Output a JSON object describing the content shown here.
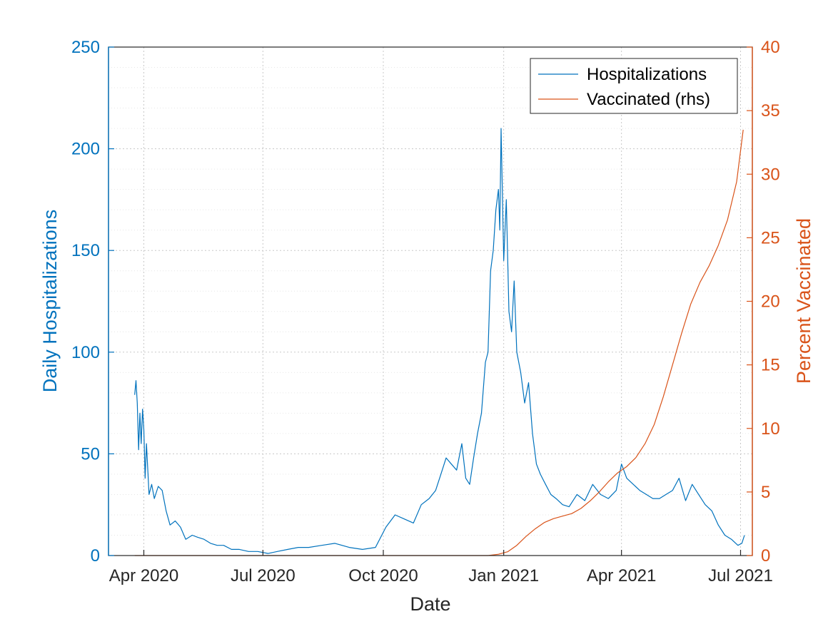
{
  "colors": {
    "hosp": "#0072BD",
    "vacc": "#D95319",
    "axis": "#262626",
    "background": "#ffffff"
  },
  "legend": {
    "placement": "top-right",
    "hosp": "Hospitalizations",
    "vacc": "Vaccinated (rhs)"
  },
  "chart_data": {
    "type": "line",
    "xlabel": "Date",
    "ylabel_left": "Daily Hospitalizations",
    "ylabel_right": "Percent Vaccinated",
    "xlim": [
      "2020-03-05",
      "2021-07-10"
    ],
    "ylim_left": [
      0,
      250
    ],
    "ylim_right": [
      0,
      40
    ],
    "grid": true,
    "minor_grid": true,
    "x_ticks": [
      {
        "date": "2020-04-01",
        "label": "Apr 2020"
      },
      {
        "date": "2020-07-01",
        "label": "Jul 2020"
      },
      {
        "date": "2020-10-01",
        "label": "Oct 2020"
      },
      {
        "date": "2021-01-01",
        "label": "Jan 2021"
      },
      {
        "date": "2021-04-01",
        "label": "Apr 2021"
      },
      {
        "date": "2021-07-01",
        "label": "Jul 2021"
      }
    ],
    "y_ticks_left": [
      0,
      50,
      100,
      150,
      200,
      250
    ],
    "y_ticks_right": [
      0,
      5,
      10,
      15,
      20,
      25,
      30,
      35,
      40
    ],
    "series": [
      {
        "name": "Hospitalizations",
        "axis": "left",
        "x": [
          "2020-03-25",
          "2020-03-26",
          "2020-03-27",
          "2020-03-28",
          "2020-03-29",
          "2020-03-30",
          "2020-03-31",
          "2020-04-01",
          "2020-04-02",
          "2020-04-03",
          "2020-04-05",
          "2020-04-07",
          "2020-04-09",
          "2020-04-12",
          "2020-04-15",
          "2020-04-18",
          "2020-04-21",
          "2020-04-25",
          "2020-04-29",
          "2020-05-03",
          "2020-05-08",
          "2020-05-12",
          "2020-05-17",
          "2020-05-22",
          "2020-05-27",
          "2020-06-01",
          "2020-06-07",
          "2020-06-13",
          "2020-06-20",
          "2020-06-27",
          "2020-07-05",
          "2020-07-12",
          "2020-07-20",
          "2020-07-28",
          "2020-08-05",
          "2020-08-15",
          "2020-08-25",
          "2020-09-05",
          "2020-09-15",
          "2020-09-25",
          "2020-10-03",
          "2020-10-10",
          "2020-10-17",
          "2020-10-24",
          "2020-10-30",
          "2020-11-05",
          "2020-11-10",
          "2020-11-14",
          "2020-11-18",
          "2020-11-22",
          "2020-11-26",
          "2020-11-30",
          "2020-12-03",
          "2020-12-06",
          "2020-12-09",
          "2020-12-12",
          "2020-12-15",
          "2020-12-18",
          "2020-12-20",
          "2020-12-22",
          "2020-12-24",
          "2020-12-26",
          "2020-12-28",
          "2020-12-29",
          "2020-12-30",
          "2021-01-01",
          "2021-01-03",
          "2021-01-05",
          "2021-01-07",
          "2021-01-09",
          "2021-01-11",
          "2021-01-14",
          "2021-01-17",
          "2021-01-20",
          "2021-01-23",
          "2021-01-26",
          "2021-01-29",
          "2021-02-02",
          "2021-02-06",
          "2021-02-10",
          "2021-02-15",
          "2021-02-20",
          "2021-02-26",
          "2021-03-04",
          "2021-03-10",
          "2021-03-16",
          "2021-03-22",
          "2021-03-28",
          "2021-04-01",
          "2021-04-05",
          "2021-04-10",
          "2021-04-15",
          "2021-04-20",
          "2021-04-25",
          "2021-04-30",
          "2021-05-05",
          "2021-05-10",
          "2021-05-15",
          "2021-05-20",
          "2021-05-25",
          "2021-05-30",
          "2021-06-04",
          "2021-06-09",
          "2021-06-14",
          "2021-06-19",
          "2021-06-24",
          "2021-06-29",
          "2021-07-02",
          "2021-07-04"
        ],
        "y": [
          79,
          86,
          75,
          52,
          70,
          55,
          72,
          62,
          38,
          55,
          30,
          35,
          28,
          34,
          32,
          22,
          15,
          17,
          14,
          8,
          10,
          9,
          8,
          6,
          5,
          5,
          3,
          3,
          2,
          2,
          1,
          2,
          3,
          4,
          4,
          5,
          6,
          4,
          3,
          4,
          14,
          20,
          18,
          16,
          25,
          28,
          32,
          40,
          48,
          45,
          42,
          55,
          38,
          35,
          48,
          60,
          70,
          95,
          100,
          140,
          150,
          170,
          180,
          160,
          210,
          145,
          175,
          120,
          110,
          135,
          100,
          90,
          75,
          85,
          60,
          45,
          40,
          35,
          30,
          28,
          25,
          24,
          30,
          27,
          35,
          30,
          28,
          32,
          45,
          38,
          35,
          32,
          30,
          28,
          28,
          30,
          32,
          38,
          27,
          35,
          30,
          25,
          22,
          15,
          10,
          8,
          5,
          6,
          10
        ]
      },
      {
        "name": "Vaccinated (rhs)",
        "axis": "right",
        "x": [
          "2020-03-25",
          "2020-12-14",
          "2020-12-20",
          "2020-12-28",
          "2021-01-04",
          "2021-01-11",
          "2021-01-18",
          "2021-01-25",
          "2021-02-01",
          "2021-02-08",
          "2021-02-15",
          "2021-02-22",
          "2021-03-01",
          "2021-03-08",
          "2021-03-15",
          "2021-03-22",
          "2021-03-29",
          "2021-04-05",
          "2021-04-12",
          "2021-04-19",
          "2021-04-26",
          "2021-05-03",
          "2021-05-10",
          "2021-05-17",
          "2021-05-24",
          "2021-05-31",
          "2021-06-07",
          "2021-06-14",
          "2021-06-21",
          "2021-06-28",
          "2021-07-03"
        ],
        "y": [
          0,
          0,
          0,
          0.1,
          0.3,
          0.8,
          1.5,
          2.1,
          2.6,
          2.9,
          3.1,
          3.3,
          3.7,
          4.3,
          5.0,
          5.8,
          6.5,
          7.0,
          7.7,
          8.8,
          10.3,
          12.5,
          15.0,
          17.5,
          19.8,
          21.5,
          22.8,
          24.4,
          26.4,
          29.4,
          33.5
        ]
      }
    ]
  }
}
